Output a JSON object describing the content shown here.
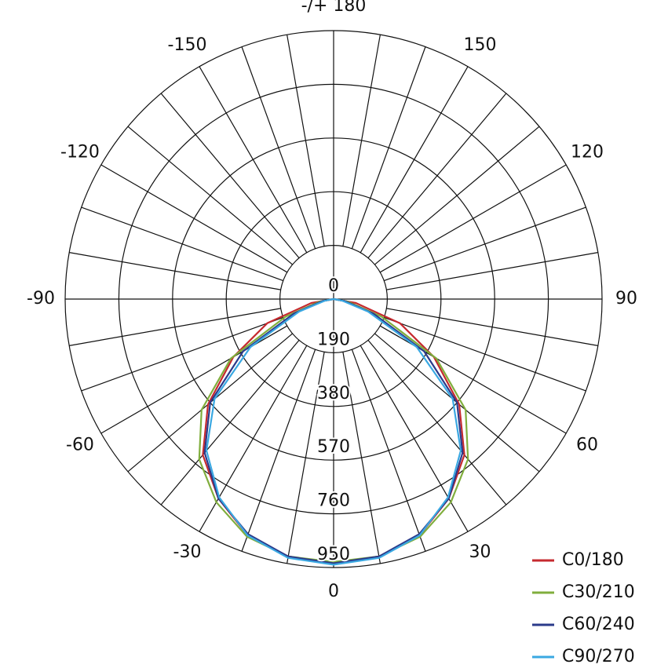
{
  "chart_data": {
    "type": "polar",
    "angles": [
      -90,
      -80,
      -70,
      -60,
      -50,
      -40,
      -30,
      -20,
      -10,
      0,
      10,
      20,
      30,
      40,
      50,
      60,
      70,
      80,
      90
    ],
    "series": [
      {
        "name": "C0/180",
        "color": "#c62a2f",
        "values": [
          0,
          80,
          250,
          410,
          580,
          720,
          815,
          890,
          925,
          935,
          925,
          890,
          815,
          720,
          580,
          410,
          250,
          80,
          0
        ]
      },
      {
        "name": "C30/210",
        "color": "#80ae3d",
        "values": [
          0,
          50,
          180,
          420,
          610,
          740,
          830,
          895,
          925,
          930,
          925,
          895,
          830,
          740,
          610,
          420,
          180,
          50,
          0
        ]
      },
      {
        "name": "C60/240",
        "color": "#2b3a8a",
        "values": [
          0,
          40,
          150,
          370,
          570,
          710,
          815,
          885,
          925,
          935,
          925,
          885,
          815,
          710,
          570,
          370,
          150,
          40,
          0
        ]
      },
      {
        "name": "C90/270",
        "color": "#3aa8e2",
        "values": [
          0,
          30,
          130,
          340,
          550,
          700,
          810,
          890,
          930,
          940,
          930,
          890,
          810,
          700,
          550,
          340,
          130,
          30,
          0
        ]
      }
    ],
    "rlim": [
      0,
      950
    ],
    "rticks": [
      0,
      190,
      380,
      570,
      760,
      950
    ],
    "thetaticks": [
      -150,
      -120,
      -90,
      -60,
      -30,
      0,
      30,
      60,
      90,
      120,
      150,
      {
        "value": 180,
        "label": "-/+ 180"
      }
    ],
    "theta_gridlines": [
      -170,
      -160,
      -150,
      -140,
      -130,
      -120,
      -110,
      -100,
      -90,
      -80,
      -70,
      -60,
      -50,
      -40,
      -30,
      -20,
      -10,
      0,
      10,
      20,
      30,
      40,
      50,
      60,
      70,
      80,
      90,
      100,
      110,
      120,
      130,
      140,
      150,
      160,
      170,
      180
    ],
    "legend": "bottom-right"
  }
}
